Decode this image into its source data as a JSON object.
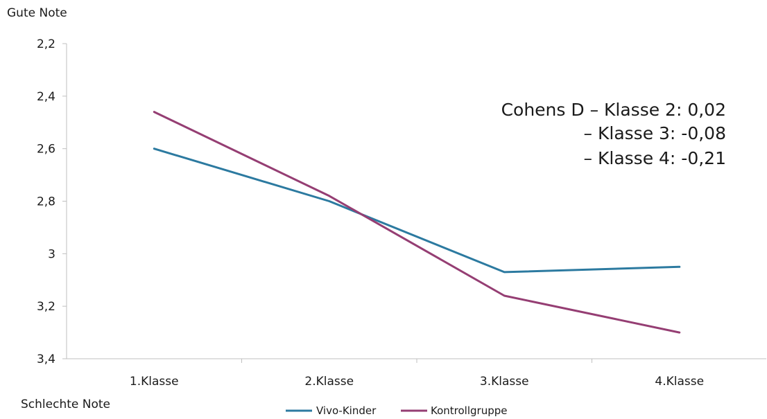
{
  "chart_data": {
    "type": "line",
    "top_label": "Gute Note",
    "bottom_label": "Schlechte Note",
    "categories": [
      "1.Klasse",
      "2.Klasse",
      "3.Klasse",
      "4.Klasse"
    ],
    "y_ticks": [
      "2,2",
      "2,4",
      "2,6",
      "2,8",
      "3",
      "3,2",
      "3,4"
    ],
    "y_tick_values": [
      2.2,
      2.4,
      2.6,
      2.8,
      3.0,
      3.2,
      3.4
    ],
    "ylim": [
      2.2,
      3.4
    ],
    "y_inverted": true,
    "grid": false,
    "legend_position": "bottom",
    "series": [
      {
        "name": "Vivo-Kinder",
        "color": "#2c7aa0",
        "values": [
          2.6,
          2.8,
          3.07,
          3.05
        ]
      },
      {
        "name": "Kontrollgruppe",
        "color": "#953e73",
        "values": [
          2.46,
          2.78,
          3.16,
          3.3
        ]
      }
    ],
    "annotations": [
      "Cohens D – Klasse 2: 0,02",
      "– Klasse 3: -0,08",
      "– Klasse 4: -0,21"
    ]
  }
}
